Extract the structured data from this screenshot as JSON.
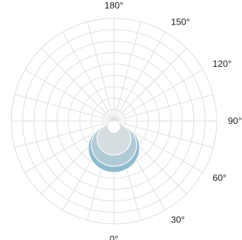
{
  "chart_data": {
    "type": "polar-area",
    "angular_ticks": [
      "0°",
      "30°",
      "60°",
      "90°",
      "120°",
      "150°",
      "180°"
    ],
    "grid": true,
    "angular_grid_step_deg": 15,
    "radial_grid_rings": 9,
    "rmax": 1.0,
    "series": [
      {
        "color": "#90bcd2",
        "r0": 0.5,
        "angle_span_deg": 140
      },
      {
        "color": "#b1cbd6",
        "r0": 0.44,
        "angle_span_deg": 140
      },
      {
        "color": "#d6dde1",
        "r0": 0.33,
        "angle_span_deg": 140
      },
      {
        "color": "#ffffff",
        "r0": 0.11,
        "angle_span_deg": 140
      }
    ]
  }
}
